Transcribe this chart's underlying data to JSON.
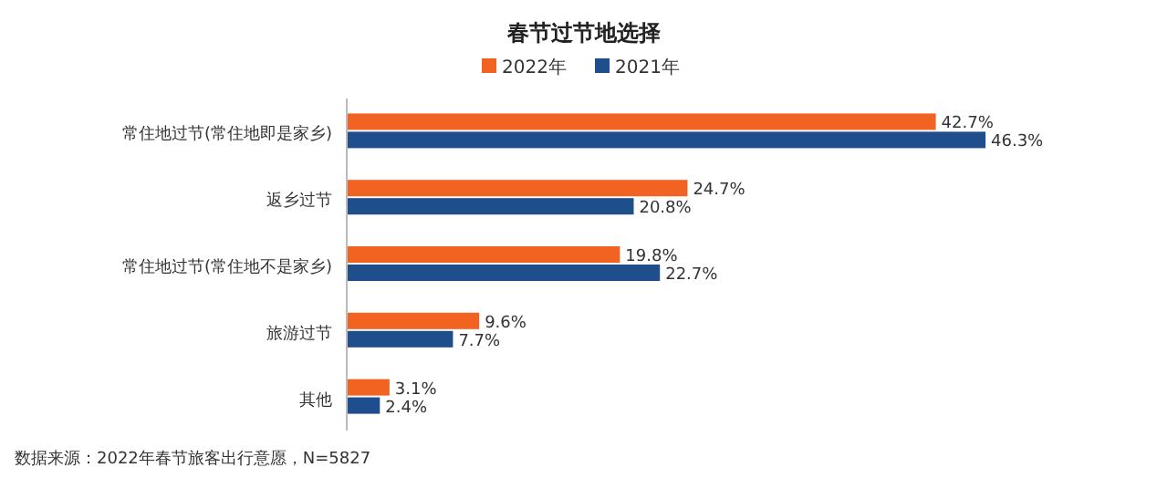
{
  "chart_data": {
    "type": "bar",
    "orientation": "horizontal",
    "title": "春节过节地选择",
    "categories": [
      "常住地过节(常住地即是家乡)",
      "返乡过节",
      "常住地过节(常住地不是家乡)",
      "旅游过节",
      "其他"
    ],
    "series": [
      {
        "name": "2022年",
        "color": "#f26322",
        "values": [
          42.7,
          24.7,
          19.8,
          9.6,
          3.1
        ],
        "value_labels": [
          "42.7%",
          "24.7%",
          "19.8%",
          "9.6%",
          "3.1%"
        ]
      },
      {
        "name": "2021年",
        "color": "#1f4e8c",
        "values": [
          46.3,
          20.8,
          22.7,
          7.7,
          2.4
        ],
        "value_labels": [
          "46.3%",
          "20.8%",
          "22.7%",
          "7.7%",
          "2.4%"
        ]
      }
    ],
    "legend": "top",
    "annotations": [
      "数据来源：2022年春节旅客出行意愿，N=5827"
    ]
  }
}
